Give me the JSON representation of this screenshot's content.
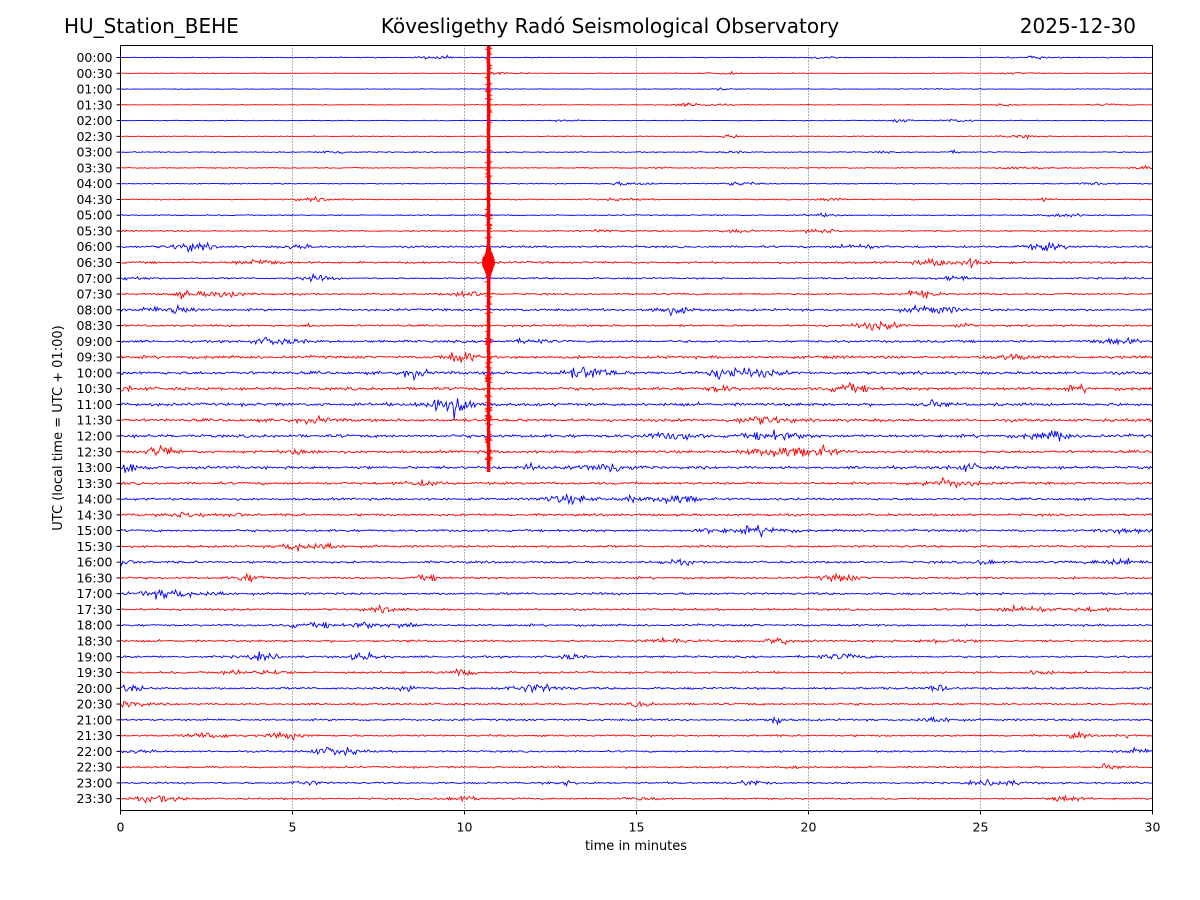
{
  "header": {
    "station": "HU_Station_BEHE",
    "title": "Kövesligethy Radó Seismological Observatory",
    "date": "2025-12-30"
  },
  "chart_data": {
    "type": "line",
    "title": "Kövesligethy Radó Seismological Observatory",
    "xlabel": "time in minutes",
    "ylabel": "UTC (local time = UTC + 01:00)",
    "xlim": [
      0,
      30
    ],
    "xticks": [
      0,
      5,
      10,
      15,
      20,
      25,
      30
    ],
    "grid": "vertical dotted at 5-minute intervals",
    "colors": [
      "#0000ff",
      "#ff0000"
    ],
    "rows": [
      "00:00",
      "00:30",
      "01:00",
      "01:30",
      "02:00",
      "02:30",
      "03:00",
      "03:30",
      "04:00",
      "04:30",
      "05:00",
      "05:30",
      "06:00",
      "06:30",
      "07:00",
      "07:30",
      "08:00",
      "08:30",
      "09:00",
      "09:30",
      "10:00",
      "10:30",
      "11:00",
      "11:30",
      "12:00",
      "12:30",
      "13:00",
      "13:30",
      "14:00",
      "14:30",
      "15:00",
      "15:30",
      "16:00",
      "16:30",
      "17:00",
      "17:30",
      "18:00",
      "18:30",
      "19:00",
      "19:30",
      "20:00",
      "20:30",
      "21:00",
      "21:30",
      "22:00",
      "22:30",
      "23:00",
      "23:30"
    ],
    "noise_level": [
      0.35,
      0.3,
      0.3,
      0.3,
      0.35,
      0.4,
      0.45,
      0.45,
      0.45,
      0.5,
      0.5,
      0.55,
      0.9,
      0.9,
      0.7,
      0.8,
      1.0,
      0.9,
      1.0,
      1.2,
      1.3,
      1.3,
      1.3,
      1.3,
      1.3,
      1.2,
      1.2,
      1.1,
      1.0,
      1.0,
      1.0,
      1.0,
      0.95,
      0.9,
      1.0,
      0.9,
      0.9,
      0.9,
      0.9,
      0.9,
      1.0,
      0.9,
      0.9,
      0.8,
      0.8,
      0.8,
      0.8,
      0.75
    ],
    "event": {
      "time_min": 10.7,
      "rows_affected": [
        "00:00",
        "00:30",
        "01:00",
        "01:30",
        "02:00",
        "02:30",
        "03:00",
        "03:30",
        "04:00",
        "04:30",
        "05:00",
        "05:30",
        "06:00",
        "06:30",
        "07:00",
        "07:30",
        "08:00",
        "08:30",
        "09:00",
        "09:30",
        "10:00",
        "10:30",
        "11:00",
        "11:30",
        "12:00",
        "12:30",
        "13:00"
      ],
      "peak_row": "06:30",
      "color": "#ff0000"
    }
  }
}
